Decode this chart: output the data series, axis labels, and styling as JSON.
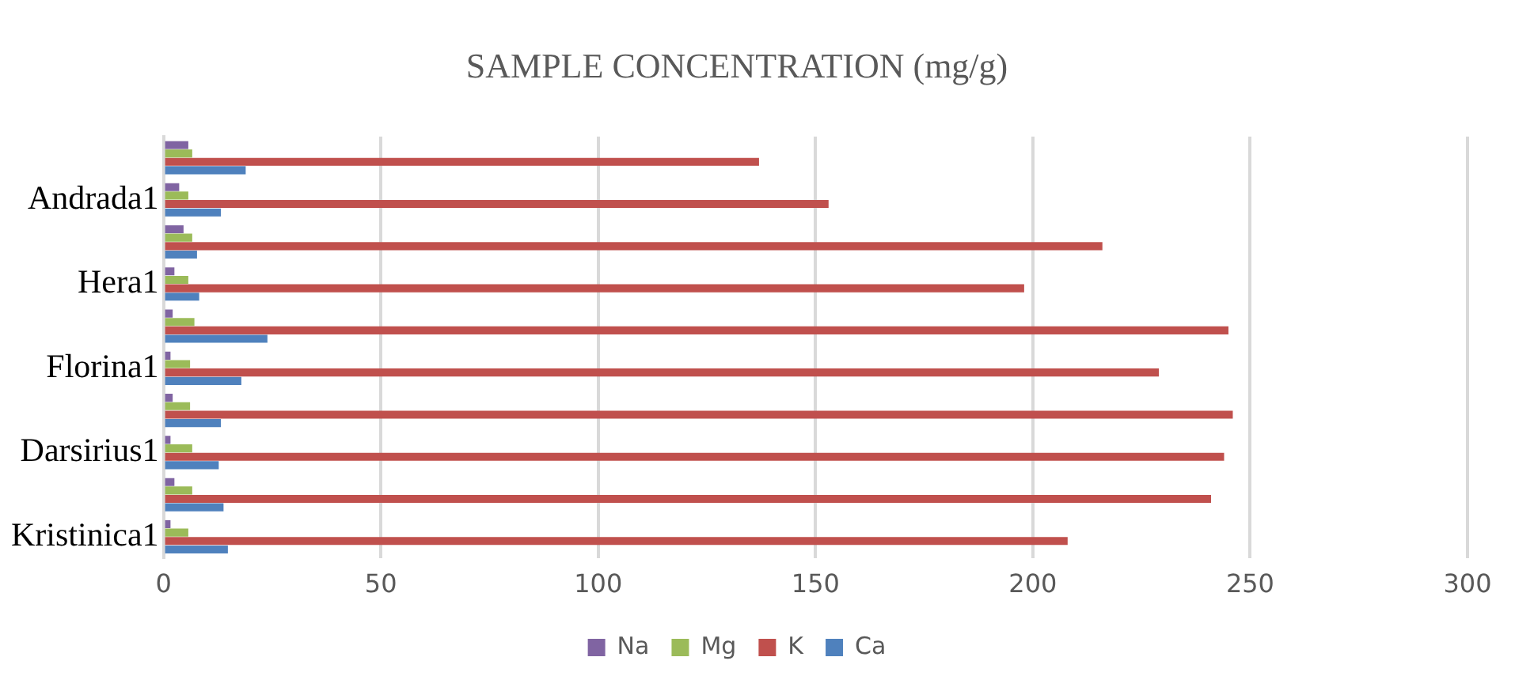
{
  "chart_data": {
    "type": "bar",
    "orientation": "horizontal",
    "title": "SAMPLE CONCENTRATION (mg/g)",
    "categories": [
      null,
      "Andrada1",
      null,
      "Hera1",
      null,
      "Florina1",
      null,
      "Darsirius1",
      null,
      "Kristinica1"
    ],
    "series": [
      {
        "name": "Na",
        "color": "#8064a2",
        "values": [
          5.7,
          3.6,
          4.6,
          2.5,
          2.1,
          1.6,
          2.1,
          1.6,
          2.5,
          1.6
        ]
      },
      {
        "name": "Mg",
        "color": "#9bbb59",
        "values": [
          6.6,
          5.7,
          6.6,
          5.7,
          7.1,
          6.1,
          6.1,
          6.6,
          6.6,
          5.7
        ]
      },
      {
        "name": "K",
        "color": "#c0504d",
        "values": [
          137,
          153,
          216,
          198,
          245,
          229,
          246,
          244,
          241,
          208
        ]
      },
      {
        "name": "Ca",
        "color": "#4f81bd",
        "values": [
          18.9,
          13.2,
          7.7,
          8.2,
          23.9,
          17.9,
          13.2,
          12.7,
          13.8,
          14.8
        ]
      }
    ],
    "xlim": [
      0,
      300
    ],
    "xticks": [
      0,
      50,
      100,
      150,
      200,
      250,
      300
    ],
    "grid": "x",
    "legend": "bottom"
  }
}
